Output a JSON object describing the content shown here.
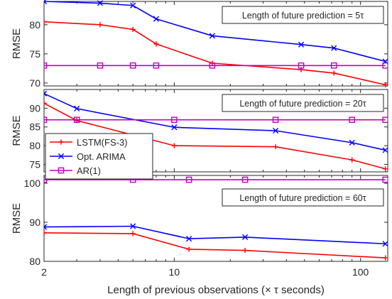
{
  "chart_data": [
    {
      "type": "line",
      "annotation": "Length of future prediction = 5τ",
      "ylabel": "RMSE",
      "ylim": [
        69.5,
        84
      ],
      "yticks": [
        70,
        75,
        80
      ],
      "xscale": "log",
      "xlim": [
        2,
        140
      ],
      "series": [
        {
          "name": "LSTM(FS-3)",
          "color": "#ff0000",
          "marker": "plus",
          "x": [
            2,
            4,
            6,
            8,
            16,
            48,
            72,
            136
          ],
          "y": [
            80.5,
            80.0,
            79.2,
            76.7,
            73.4,
            72.3,
            71.7,
            69.7
          ]
        },
        {
          "name": "Opt. ARIMA",
          "color": "#0000ff",
          "marker": "x",
          "x": [
            2,
            4,
            6,
            8,
            16,
            48,
            72,
            136
          ],
          "y": [
            84.0,
            83.7,
            83.3,
            81.0,
            78.1,
            76.6,
            76.0,
            73.7
          ]
        },
        {
          "name": "AR(1)",
          "color": "#bf00bf",
          "marker": "square",
          "x": [
            2,
            4,
            6,
            8,
            16,
            48,
            72,
            136
          ],
          "y": [
            73.0,
            73.0,
            73.0,
            73.0,
            73.0,
            73.0,
            73.0,
            73.0
          ]
        }
      ]
    },
    {
      "type": "line",
      "annotation": "Length of future prediction = 20τ",
      "ylabel": "RMSE",
      "ylim": [
        73,
        95
      ],
      "yticks": [
        75,
        80,
        85,
        90
      ],
      "xscale": "log",
      "xlim": [
        2,
        140
      ],
      "series": [
        {
          "name": "LSTM(FS-3)",
          "color": "#ff0000",
          "marker": "plus",
          "x": [
            2,
            3,
            10,
            35,
            90,
            136
          ],
          "y": [
            91.3,
            86.7,
            80.0,
            79.7,
            76.2,
            73.8
          ]
        },
        {
          "name": "Opt. ARIMA",
          "color": "#0000ff",
          "marker": "x",
          "x": [
            2,
            3,
            10,
            35,
            90,
            136
          ],
          "y": [
            93.9,
            89.9,
            84.9,
            84.0,
            80.8,
            78.8
          ]
        },
        {
          "name": "AR(1)",
          "color": "#bf00bf",
          "marker": "square",
          "x": [
            2,
            3,
            10,
            35,
            90,
            136
          ],
          "y": [
            86.9,
            86.9,
            86.9,
            86.9,
            86.9,
            86.9
          ]
        }
      ]
    },
    {
      "type": "line",
      "annotation": "Length of future prediction = 60τ",
      "ylabel": "RMSE",
      "ylim": [
        80,
        102
      ],
      "yticks": [
        80,
        90,
        100
      ],
      "xscale": "log",
      "xlim": [
        2,
        140
      ],
      "xticks": [
        2,
        10,
        100
      ],
      "xlabel": "Length of previous observations (× τ seconds)",
      "series": [
        {
          "name": "LSTM(FS-3)",
          "color": "#ff0000",
          "marker": "plus",
          "x": [
            2,
            6,
            12,
            24,
            136
          ],
          "y": [
            87.3,
            87.1,
            83.1,
            82.8,
            80.9
          ]
        },
        {
          "name": "Opt. ARIMA",
          "color": "#0000ff",
          "marker": "x",
          "x": [
            2,
            6,
            12,
            24,
            136
          ],
          "y": [
            88.8,
            89.0,
            85.8,
            86.2,
            84.5
          ]
        },
        {
          "name": "AR(1)",
          "color": "#bf00bf",
          "marker": "square",
          "x": [
            2,
            6,
            12,
            24,
            136
          ],
          "y": [
            100.9,
            100.9,
            100.9,
            100.9,
            100.9
          ]
        }
      ]
    }
  ],
  "legend": {
    "placement": "middle-left",
    "items": [
      {
        "label": "LSTM(FS-3)",
        "color": "#ff0000",
        "marker": "plus"
      },
      {
        "label": "Opt. ARIMA",
        "color": "#0000ff",
        "marker": "x"
      },
      {
        "label": "AR(1)",
        "color": "#bf00bf",
        "marker": "square"
      }
    ]
  }
}
